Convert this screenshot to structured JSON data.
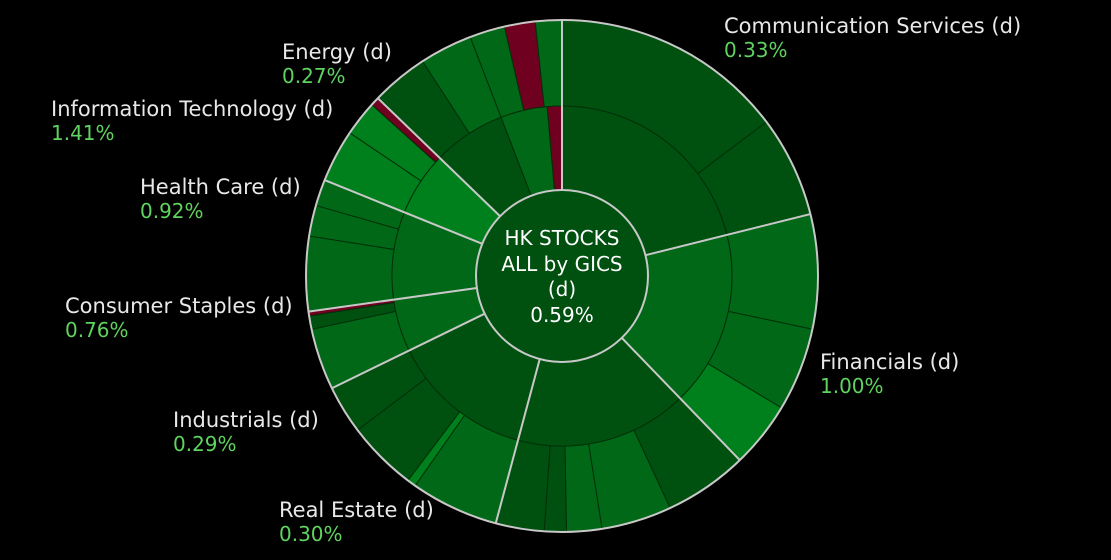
{
  "chart_data": {
    "type": "sunburst",
    "center": {
      "title_lines": [
        "HK STOCKS",
        "ALL by GICS",
        "(d)"
      ],
      "value": "0.59%"
    },
    "colors": {
      "background": "#000000",
      "positive_dark": "#005010",
      "positive_mid": "#006816",
      "positive_bright": "#00801c",
      "negative": "#700020",
      "divider": "#c8c8c8",
      "name_text": "#e8e8e8",
      "value_text": "#5fd35f"
    },
    "sectors": [
      {
        "name": "Communication Services (d)",
        "value": "0.33%",
        "start_deg": 0,
        "end_deg": 76,
        "inner": [
          {
            "span": 76,
            "shade": "dark"
          }
        ],
        "outer": [
          {
            "span": 53,
            "shade": "dark"
          },
          {
            "span": 23,
            "shade": "dark"
          }
        ]
      },
      {
        "name": "Financials (d)",
        "value": "1.00%",
        "start_deg": 76,
        "end_deg": 136,
        "inner": [
          {
            "span": 60,
            "shade": "mid"
          }
        ],
        "outer": [
          {
            "span": 26,
            "shade": "mid"
          },
          {
            "span": 19,
            "shade": "mid"
          },
          {
            "span": 15,
            "shade": "bright"
          }
        ]
      },
      {
        "name": "Real Estate (d)",
        "value": "0.30%",
        "start_deg": 136,
        "end_deg": 195,
        "inner": [
          {
            "span": 59,
            "shade": "dark"
          }
        ],
        "outer": [
          {
            "span": 19,
            "shade": "dark"
          },
          {
            "span": 16,
            "shade": "mid"
          },
          {
            "span": 8,
            "shade": "mid"
          },
          {
            "span": 5,
            "shade": "dark"
          },
          {
            "span": 11,
            "shade": "dark"
          }
        ]
      },
      {
        "name": "Industrials (d)",
        "value": "0.29%",
        "start_deg": 195,
        "end_deg": 244,
        "inner": [
          {
            "span": 49,
            "shade": "dark"
          }
        ],
        "outer": [
          {
            "span": 20,
            "shade": "mid"
          },
          {
            "span": 2,
            "shade": "bright"
          },
          {
            "span": 16,
            "shade": "dark"
          },
          {
            "span": 11,
            "shade": "dark"
          }
        ]
      },
      {
        "name": "Consumer Staples (d)",
        "value": "0.76%",
        "start_deg": 244,
        "end_deg": 262,
        "inner": [
          {
            "span": 18,
            "shade": "mid"
          }
        ],
        "outer": [
          {
            "span": 14,
            "shade": "mid"
          },
          {
            "span": 3,
            "shade": "dark"
          },
          {
            "span": 1,
            "shade": "negative"
          }
        ]
      },
      {
        "name": "Health Care (d)",
        "value": "0.92%",
        "start_deg": 262,
        "end_deg": 292,
        "inner": [
          {
            "span": 30,
            "shade": "mid"
          }
        ],
        "outer": [
          {
            "span": 17,
            "shade": "mid"
          },
          {
            "span": 7,
            "shade": "mid"
          },
          {
            "span": 6,
            "shade": "mid"
          }
        ]
      },
      {
        "name": "Information Technology (d)",
        "value": "1.41%",
        "start_deg": 292,
        "end_deg": 314,
        "inner": [
          {
            "span": 22,
            "shade": "bright"
          }
        ],
        "outer": [
          {
            "span": 12,
            "shade": "bright"
          },
          {
            "span": 8,
            "shade": "bright"
          },
          {
            "span": 2,
            "shade": "negative"
          }
        ]
      },
      {
        "name": "Energy (d)",
        "value": "0.27%",
        "start_deg": 314,
        "end_deg": 360,
        "inner": [
          {
            "span": 25,
            "shade": "dark"
          },
          {
            "span": 16,
            "shade": "mid"
          },
          {
            "span": 5,
            "shade": "negative"
          }
        ],
        "outer": [
          {
            "span": 13,
            "shade": "dark"
          },
          {
            "span": 12,
            "shade": "mid"
          },
          {
            "span": 8,
            "shade": "mid"
          },
          {
            "span": 7,
            "shade": "negative"
          },
          {
            "span": 6,
            "shade": "mid"
          }
        ]
      }
    ]
  }
}
